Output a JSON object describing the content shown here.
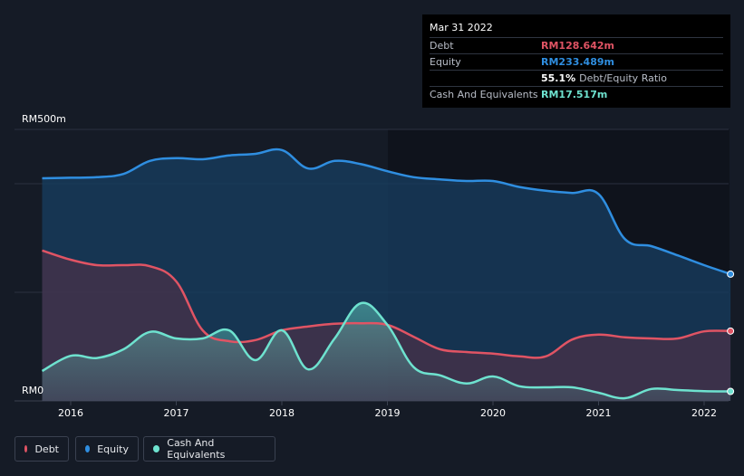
{
  "tooltip": {
    "date": "Mar 31 2022",
    "debt_label": "Debt",
    "debt_value": "RM128.642m",
    "equity_label": "Equity",
    "equity_value": "RM233.489m",
    "ratio_value": "55.1%",
    "ratio_label": "Debt/Equity Ratio",
    "cash_label": "Cash And Equivalents",
    "cash_value": "RM17.517m"
  },
  "legend": {
    "debt": "Debt",
    "equity": "Equity",
    "cash": "Cash And Equivalents"
  },
  "colors": {
    "debt": "#e05464",
    "equity": "#2f8ee0",
    "cash": "#6ee2cf",
    "background": "#151b26"
  },
  "chart_data": {
    "type": "area",
    "y_top_label": "RM500m",
    "y_bottom_label": "RM0",
    "ylim": [
      0,
      500
    ],
    "xlim": [
      2015.73,
      2022.25
    ],
    "x_ticks": [
      2016,
      2017,
      2018,
      2019,
      2020,
      2021,
      2022
    ],
    "x_tick_labels": [
      "2016",
      "2017",
      "2018",
      "2019",
      "2020",
      "2021",
      "2022"
    ],
    "grid": true,
    "legend_position": "bottom-left",
    "series": [
      {
        "name": "Equity",
        "x": [
          2015.73,
          2016.0,
          2016.25,
          2016.5,
          2016.75,
          2017.0,
          2017.25,
          2017.5,
          2017.75,
          2018.0,
          2018.25,
          2018.5,
          2018.75,
          2019.0,
          2019.25,
          2019.5,
          2019.75,
          2020.0,
          2020.25,
          2020.5,
          2020.75,
          2021.0,
          2021.25,
          2021.5,
          2021.75,
          2022.0,
          2022.25
        ],
        "values": [
          410,
          411,
          412,
          418,
          442,
          447,
          445,
          452,
          455,
          462,
          428,
          442,
          436,
          423,
          412,
          408,
          405,
          405,
          394,
          387,
          383,
          381,
          298,
          285,
          268,
          250,
          233.5
        ]
      },
      {
        "name": "Debt",
        "x": [
          2015.73,
          2016.0,
          2016.25,
          2016.5,
          2016.75,
          2017.0,
          2017.25,
          2017.5,
          2017.75,
          2018.0,
          2018.25,
          2018.5,
          2018.75,
          2019.0,
          2019.25,
          2019.5,
          2019.75,
          2020.0,
          2020.25,
          2020.5,
          2020.75,
          2021.0,
          2021.25,
          2021.5,
          2021.75,
          2022.0,
          2022.25
        ],
        "values": [
          277,
          260,
          250,
          250,
          248,
          220,
          130,
          110,
          112,
          130,
          137,
          142,
          143,
          140,
          118,
          95,
          90,
          87,
          82,
          82,
          113,
          122,
          117,
          115,
          115,
          128,
          128.6
        ]
      },
      {
        "name": "Cash And Equivalents",
        "x": [
          2015.73,
          2016.0,
          2016.25,
          2016.5,
          2016.75,
          2017.0,
          2017.25,
          2017.5,
          2017.75,
          2018.0,
          2018.25,
          2018.5,
          2018.75,
          2019.0,
          2019.25,
          2019.5,
          2019.75,
          2020.0,
          2020.25,
          2020.5,
          2020.75,
          2021.0,
          2021.25,
          2021.5,
          2021.75,
          2022.0,
          2022.25
        ],
        "values": [
          55,
          83,
          79,
          95,
          127,
          115,
          115,
          130,
          75,
          130,
          58,
          115,
          180,
          140,
          62,
          47,
          32,
          45,
          27,
          25,
          25,
          15,
          5,
          22,
          20,
          18,
          17.5
        ]
      }
    ]
  }
}
